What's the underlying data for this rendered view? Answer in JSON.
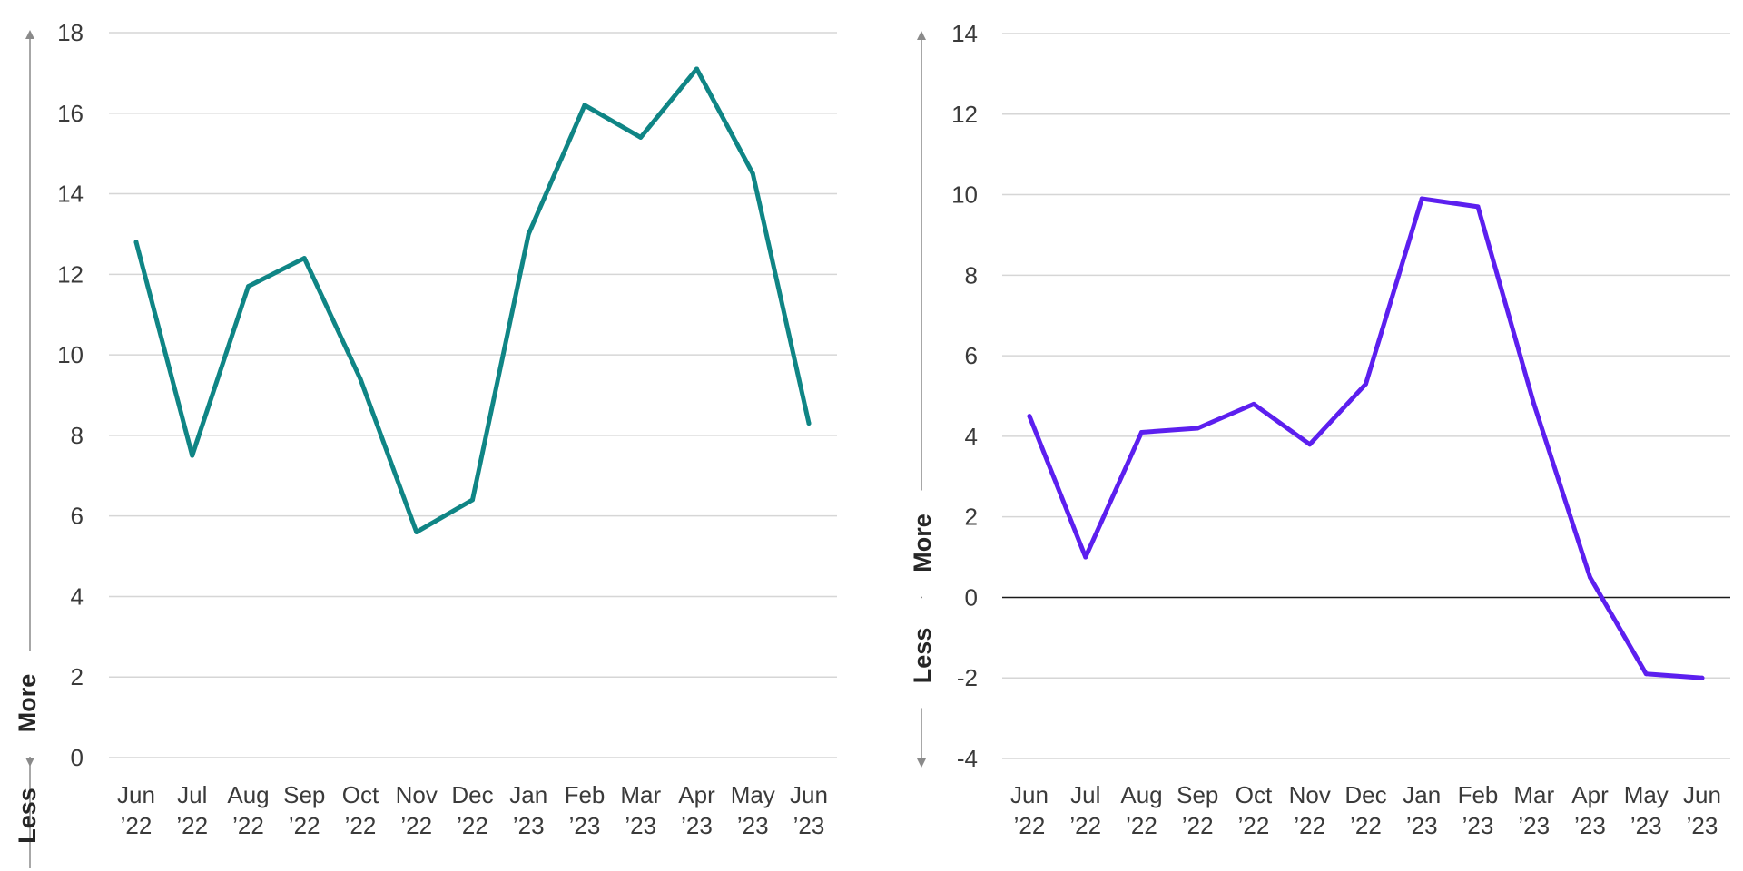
{
  "chart_data": [
    {
      "type": "line",
      "categories": [
        [
          "Jun",
          "’22"
        ],
        [
          "Jul",
          "’22"
        ],
        [
          "Aug",
          "’22"
        ],
        [
          "Sep",
          "’22"
        ],
        [
          "Oct",
          "’22"
        ],
        [
          "Nov",
          "’22"
        ],
        [
          "Dec",
          "’22"
        ],
        [
          "Jan",
          "’23"
        ],
        [
          "Feb",
          "’23"
        ],
        [
          "Mar",
          "’23"
        ],
        [
          "Apr",
          "’23"
        ],
        [
          "May",
          "’23"
        ],
        [
          "Jun",
          "’23"
        ]
      ],
      "series": [
        {
          "color": "#0f8585",
          "values": [
            12.8,
            7.5,
            11.7,
            12.4,
            9.4,
            5.6,
            6.4,
            13.0,
            16.2,
            15.4,
            17.1,
            14.5,
            8.3
          ]
        }
      ],
      "ylim": [
        0,
        18
      ],
      "yticks": [
        0,
        2,
        4,
        6,
        8,
        10,
        12,
        14,
        16,
        18
      ],
      "axis_arrow": {
        "less": "Less",
        "more": "More"
      },
      "grid": true
    },
    {
      "type": "line",
      "categories": [
        [
          "Jun",
          "’22"
        ],
        [
          "Jul",
          "’22"
        ],
        [
          "Aug",
          "’22"
        ],
        [
          "Sep",
          "’22"
        ],
        [
          "Oct",
          "’22"
        ],
        [
          "Nov",
          "’22"
        ],
        [
          "Dec",
          "’22"
        ],
        [
          "Jan",
          "’23"
        ],
        [
          "Feb",
          "’23"
        ],
        [
          "Mar",
          "’23"
        ],
        [
          "Apr",
          "’23"
        ],
        [
          "May",
          "’23"
        ],
        [
          "Jun",
          "’23"
        ]
      ],
      "series": [
        {
          "color": "#5c1fef",
          "values": [
            4.5,
            1.0,
            4.1,
            4.2,
            4.8,
            3.8,
            5.3,
            9.9,
            9.7,
            4.8,
            0.5,
            -1.9,
            -2.0
          ]
        }
      ],
      "ylim": [
        -4,
        14
      ],
      "yticks": [
        -4,
        -2,
        0,
        2,
        4,
        6,
        8,
        10,
        12,
        14
      ],
      "axis_arrow": {
        "less": "Less",
        "more": "More"
      },
      "grid": true,
      "zero_line_color": "#1a1a1a"
    }
  ]
}
